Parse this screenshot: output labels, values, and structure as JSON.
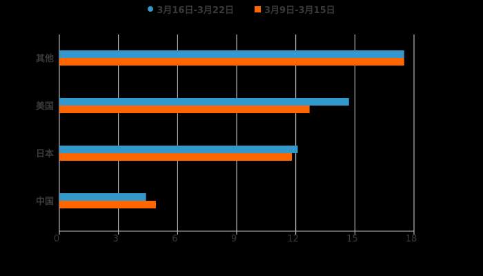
{
  "chart_data": {
    "type": "bar",
    "orientation": "horizontal",
    "title": "",
    "xlabel": "",
    "ylabel": "",
    "categories": [
      "其他",
      "美国",
      "日本",
      "中国"
    ],
    "series": [
      {
        "name": "3月16日-3月22日",
        "color": "#3399cc",
        "values": [
          17.5,
          14.7,
          12.1,
          4.4
        ]
      },
      {
        "name": "3月9日-3月15日",
        "color": "#ff6600",
        "values": [
          17.5,
          12.7,
          11.8,
          4.9
        ]
      }
    ],
    "xlim": [
      0,
      18
    ],
    "xticks": [
      0,
      3,
      6,
      9,
      12,
      15,
      18
    ],
    "grid": true,
    "legend_position": "top"
  },
  "legend": {
    "items": [
      {
        "label": "3月16日-3月22日",
        "color": "#3399cc",
        "shape": "circle"
      },
      {
        "label": "3月9日-3月15日",
        "color": "#ff6600",
        "shape": "square"
      }
    ]
  }
}
